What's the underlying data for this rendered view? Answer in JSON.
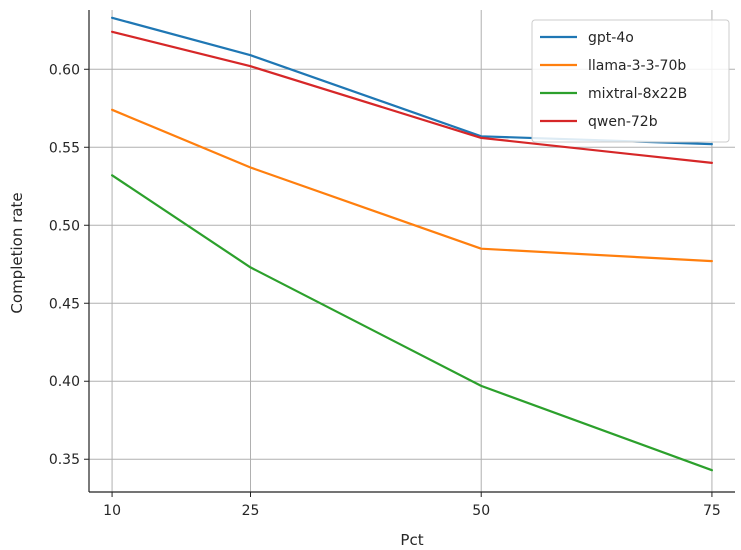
{
  "chart_data": {
    "type": "line",
    "title": "",
    "xlabel": "Pct",
    "ylabel": "Completion rate",
    "x": [
      10,
      25,
      50,
      75
    ],
    "xlim": [
      7.5,
      77.5
    ],
    "ylim": [
      0.329,
      0.638
    ],
    "xticks": [
      10,
      25,
      50,
      75
    ],
    "xtick_labels": [
      "10",
      "25",
      "50",
      "75"
    ],
    "yticks": [
      0.35,
      0.4,
      0.45,
      0.5,
      0.55,
      0.6
    ],
    "ytick_labels": [
      "0.35",
      "0.40",
      "0.45",
      "0.50",
      "0.55",
      "0.60"
    ],
    "grid": true,
    "legend_position": "top-right",
    "series": [
      {
        "name": "gpt-4o",
        "color": "#1f77b4",
        "values": [
          0.633,
          0.609,
          0.557,
          0.552
        ]
      },
      {
        "name": "llama-3-3-70b",
        "color": "#ff7f0e",
        "values": [
          0.574,
          0.537,
          0.485,
          0.477
        ]
      },
      {
        "name": "mixtral-8x22B",
        "color": "#2ca02c",
        "values": [
          0.532,
          0.473,
          0.397,
          0.343
        ]
      },
      {
        "name": "qwen-72b",
        "color": "#d62728",
        "values": [
          0.624,
          0.602,
          0.556,
          0.54
        ]
      }
    ]
  }
}
